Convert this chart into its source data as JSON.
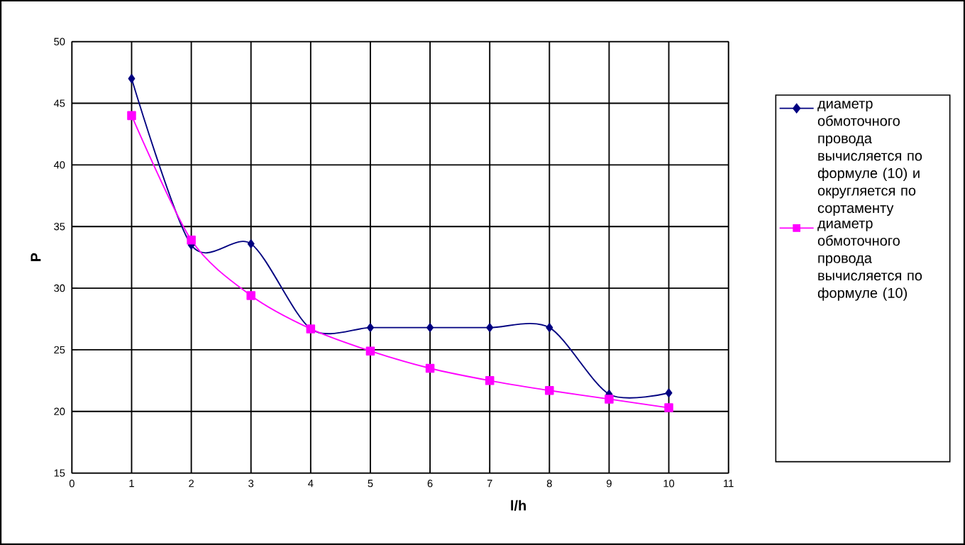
{
  "chart_data": {
    "type": "line",
    "xlabel": "l/h",
    "ylabel": "P",
    "x": [
      1,
      2,
      3,
      4,
      5,
      6,
      7,
      8,
      9,
      10
    ],
    "series": [
      {
        "name": "диаметр обмоточного провода вычисляется по формуле (10) и округляется по сортаменту",
        "color": "#000080",
        "marker": "diamond",
        "values": [
          47,
          33.5,
          33.6,
          26.7,
          26.8,
          26.8,
          26.8,
          26.8,
          21.4,
          21.5
        ]
      },
      {
        "name": "диаметр обмоточного провода вычисляется по формуле (10)",
        "color": "#ff00ff",
        "marker": "square",
        "values": [
          44,
          33.9,
          29.4,
          26.7,
          24.9,
          23.5,
          22.5,
          21.7,
          21,
          20.3
        ]
      }
    ],
    "xlim": [
      0,
      11
    ],
    "xticks": [
      0,
      1,
      2,
      3,
      4,
      5,
      6,
      7,
      8,
      9,
      10,
      11
    ],
    "ylim": [
      15,
      50
    ],
    "yticks": [
      15,
      20,
      25,
      30,
      35,
      40,
      45,
      50
    ],
    "grid": true,
    "legend": "right",
    "line_style": "solid"
  }
}
